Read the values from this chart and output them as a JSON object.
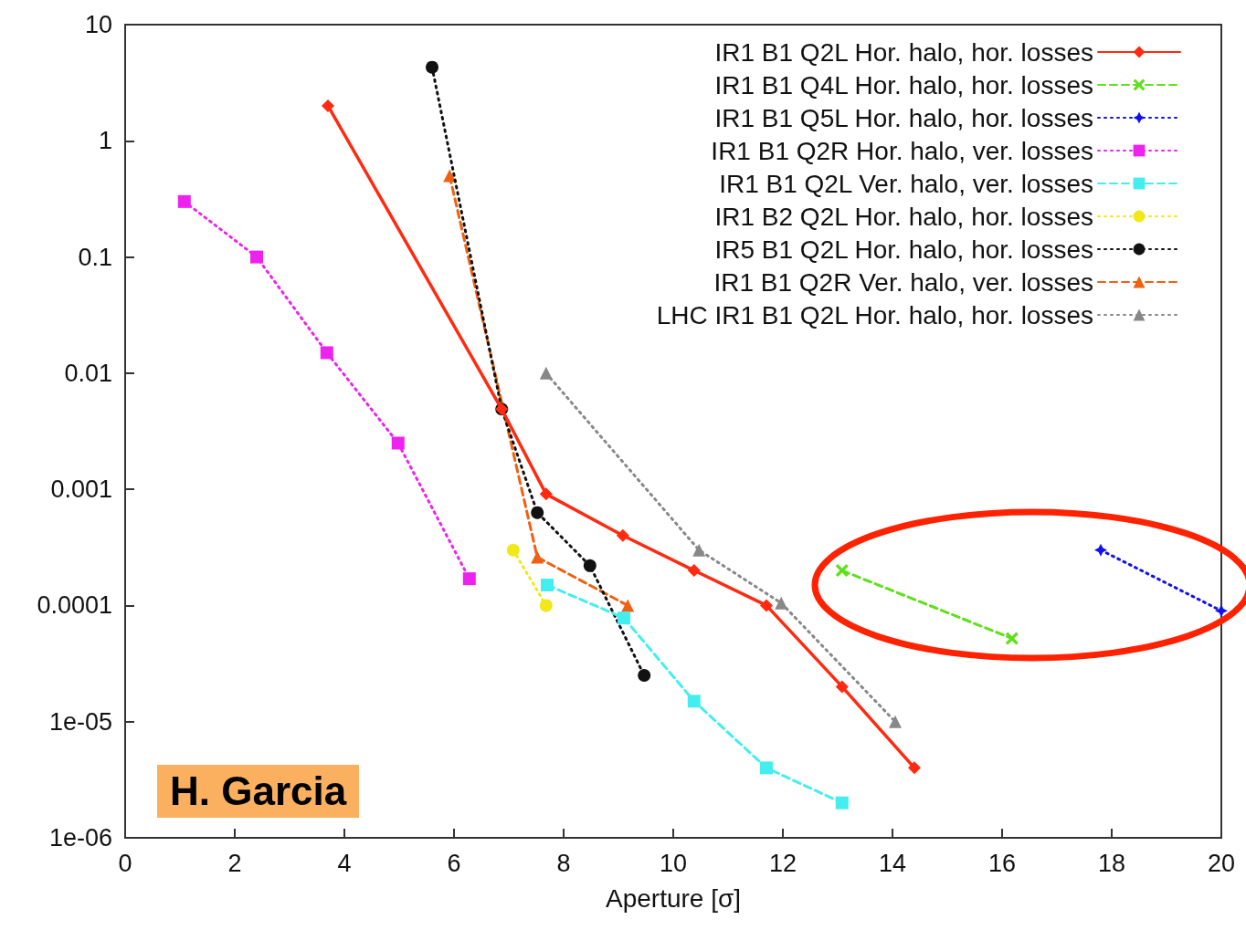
{
  "chart_data": {
    "type": "line",
    "xlabel": "Aperture [σ]",
    "xlim": [
      0,
      20
    ],
    "xticks": [
      0,
      2,
      4,
      6,
      8,
      10,
      12,
      14,
      16,
      18,
      20
    ],
    "log": "y",
    "ylim": [
      1e-06,
      10
    ],
    "yticks": [
      {
        "value": 1e-06,
        "label": "1e-06"
      },
      {
        "value": 1e-05,
        "label": "1e-05"
      },
      {
        "value": 0.0001,
        "label": "0.0001"
      },
      {
        "value": 0.001,
        "label": "0.001"
      },
      {
        "value": 0.01,
        "label": "0.01"
      },
      {
        "value": 0.1,
        "label": "0.1"
      },
      {
        "value": 1,
        "label": "1"
      },
      {
        "value": 10,
        "label": "10"
      }
    ],
    "grid": false,
    "legend": "top right",
    "annotations": [
      "H. Garcia"
    ],
    "series": [
      {
        "name": "IR1 B1 Q2L Hor. halo, hor. losses",
        "color": "#ff2a10",
        "marker": "diamond",
        "line_style": "solid",
        "x": [
          3.7,
          6.87,
          7.68,
          9.08,
          10.38,
          11.7,
          13.08,
          14.4
        ],
        "values": [
          2,
          0.0049,
          0.00091,
          0.0004,
          0.0002,
          0.0001,
          2e-05,
          4e-06
        ]
      },
      {
        "name": "IR1 B1 Q4L Hor. halo, hor. losses",
        "color": "#5ee01a",
        "marker": "cross",
        "line_style": "dashed",
        "x": [
          13.08,
          16.18
        ],
        "values": [
          0.0002,
          5.2e-05
        ]
      },
      {
        "name": "IR1 B1 Q5L Hor. halo, hor. losses",
        "color": "#1010f0",
        "marker": "star",
        "line_style": "dotted",
        "x": [
          17.8,
          20
        ],
        "values": [
          0.0003,
          9e-05
        ]
      },
      {
        "name": "IR1 B1 Q2R Hor. halo, ver. losses",
        "color": "#ee22ee",
        "marker": "square",
        "line_style": "dotted",
        "x": [
          1.08,
          2.4,
          3.68,
          4.98,
          6.28
        ],
        "values": [
          0.3,
          0.1,
          0.015,
          0.0025,
          0.00017
        ]
      },
      {
        "name": "IR1 B1 Q2L Ver. halo, ver. losses",
        "color": "#44eeee",
        "marker": "square",
        "line_style": "dashed",
        "x": [
          7.7,
          9.1,
          10.38,
          11.7,
          13.08
        ],
        "values": [
          0.00015,
          7.8e-05,
          1.5e-05,
          4e-06,
          2e-06
        ]
      },
      {
        "name": "IR1 B2 Q2L Hor. halo, hor. losses",
        "color": "#f0e818",
        "marker": "circle",
        "line_style": "dotted",
        "x": [
          7.08,
          7.68
        ],
        "values": [
          0.0003,
          0.0001
        ]
      },
      {
        "name": "IR5 B1 Q2L Hor. halo, hor. losses",
        "color": "#111111",
        "marker": "circle",
        "line_style": "dotted",
        "x": [
          5.6,
          6.87,
          7.52,
          8.48,
          9.47
        ],
        "values": [
          4.3,
          0.0049,
          0.00063,
          0.00022,
          2.5e-05
        ]
      },
      {
        "name": "IR1 B1 Q2R Ver. halo, ver. losses",
        "color": "#f06010",
        "marker": "triangle",
        "line_style": "dashed",
        "x": [
          5.92,
          7.52,
          9.17
        ],
        "values": [
          0.5,
          0.00026,
          0.0001
        ]
      },
      {
        "name": "LHC IR1 B1 Q2L Hor. halo, hor. losses",
        "color": "#888888",
        "marker": "triangle",
        "line_style": "dotted",
        "x": [
          7.68,
          10.47,
          11.97,
          14.05
        ],
        "values": [
          0.01,
          0.0003,
          0.000105,
          1e-05
        ]
      }
    ]
  }
}
